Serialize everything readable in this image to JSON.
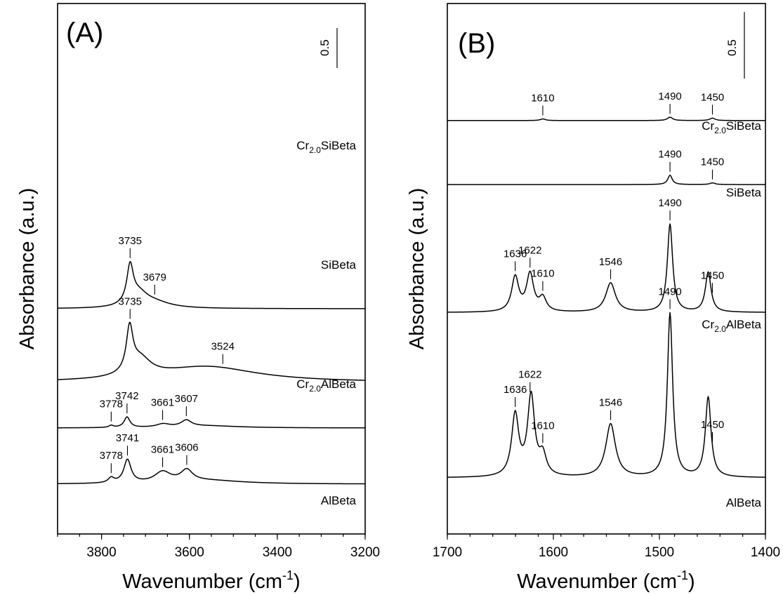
{
  "chart_data": [
    {
      "panel": "(A)",
      "type": "line",
      "xlabel": "Wavenumber (cm",
      "xlabel_sup": "-1",
      "xlabel_close": ")",
      "ylabel": "Absorbance (a.u.)",
      "xlim": [
        3900,
        3200
      ],
      "x_reversed": true,
      "xticks": [
        3800,
        3600,
        3400,
        3200
      ],
      "xtick_labels": [
        "3800",
        "3600",
        "3400",
        "3200"
      ],
      "scale_bar_label": "0.5",
      "series": [
        {
          "name": "Cr",
          "name_sub": "2.0",
          "name_rest": "SiBeta",
          "baseline": 2.6,
          "features": [
            {
              "center": 3735,
              "height": 0.53,
              "width": 9
            },
            {
              "center": 3715,
              "height": 0.18,
              "width": 25
            },
            {
              "center": 3680,
              "height": 0.08,
              "width": 45
            }
          ],
          "peaks": [
            {
              "x": 3735,
              "label": "3735"
            },
            {
              "x": 3679,
              "label": "3679"
            }
          ]
        },
        {
          "name": "SiBeta",
          "baseline": 1.55,
          "features": [
            {
              "center": 3736,
              "height": 0.62,
              "width": 9
            },
            {
              "center": 3712,
              "height": 0.25,
              "width": 30
            },
            {
              "center": 3560,
              "height": 0.22,
              "width": 140
            }
          ],
          "peaks": [
            {
              "x": 3735,
              "label": "3735"
            },
            {
              "x": 3524,
              "label": "3524"
            }
          ]
        },
        {
          "name": "Cr",
          "name_sub": "2.0",
          "name_rest": "AlBeta",
          "baseline": 0.9,
          "features": [
            {
              "center": 3778,
              "height": 0.03,
              "width": 6
            },
            {
              "center": 3742,
              "height": 0.15,
              "width": 8
            },
            {
              "center": 3660,
              "height": 0.045,
              "width": 18
            },
            {
              "center": 3607,
              "height": 0.09,
              "width": 14
            },
            {
              "center": 3560,
              "height": 0.03,
              "width": 90
            }
          ],
          "peaks": [
            {
              "x": 3778,
              "label": "3778"
            },
            {
              "x": 3742,
              "label": "3742"
            },
            {
              "x": 3661,
              "label": "3661"
            },
            {
              "x": 3607,
              "label": "3607"
            }
          ]
        },
        {
          "name": "AlBeta",
          "baseline": 0.1,
          "features": [
            {
              "center": 3778,
              "height": 0.07,
              "width": 8
            },
            {
              "center": 3741,
              "height": 0.33,
              "width": 10
            },
            {
              "center": 3661,
              "height": 0.15,
              "width": 22
            },
            {
              "center": 3606,
              "height": 0.16,
              "width": 16
            },
            {
              "center": 3560,
              "height": 0.05,
              "width": 100
            }
          ],
          "peaks": [
            {
              "x": 3778,
              "label": "3778"
            },
            {
              "x": 3741,
              "label": "3741"
            },
            {
              "x": 3661,
              "label": "3661"
            },
            {
              "x": 3606,
              "label": "3606"
            }
          ]
        }
      ]
    },
    {
      "panel": "(B)",
      "type": "line",
      "xlabel": "Wavenumber (cm",
      "xlabel_sup": "-1",
      "xlabel_close": ")",
      "ylabel": "Absorbance (a.u.)",
      "xlim": [
        1700,
        1400
      ],
      "x_reversed": true,
      "xticks": [
        1700,
        1600,
        1500,
        1400
      ],
      "xtick_labels": [
        "1700",
        "1600",
        "1500",
        "1400"
      ],
      "scale_bar_label": "0.5",
      "series": [
        {
          "name": "Cr",
          "name_sub": "2.0",
          "name_rest": "SiBeta",
          "baseline": 2.78,
          "features": [
            {
              "center": 1610,
              "height": 0.012,
              "width": 3
            },
            {
              "center": 1490,
              "height": 0.025,
              "width": 3
            },
            {
              "center": 1450,
              "height": 0.018,
              "width": 3
            }
          ],
          "peaks": [
            {
              "x": 1610,
              "label": "1610"
            },
            {
              "x": 1490,
              "label": "1490"
            },
            {
              "x": 1450,
              "label": "1450"
            }
          ]
        },
        {
          "name": "SiBeta",
          "baseline": 2.3,
          "features": [
            {
              "center": 1490,
              "height": 0.07,
              "width": 2.5
            },
            {
              "center": 1450,
              "height": 0.012,
              "width": 3
            }
          ],
          "peaks": [
            {
              "x": 1490,
              "label": "1490"
            },
            {
              "x": 1450,
              "label": "1450"
            }
          ]
        },
        {
          "name": "Cr",
          "name_sub": "2.0",
          "name_rest": "AlBeta",
          "baseline": 1.34,
          "features": [
            {
              "center": 1636,
              "height": 0.26,
              "width": 4
            },
            {
              "center": 1622,
              "height": 0.28,
              "width": 4
            },
            {
              "center": 1610,
              "height": 0.1,
              "width": 4
            },
            {
              "center": 1546,
              "height": 0.22,
              "width": 5.5
            },
            {
              "center": 1490,
              "height": 0.66,
              "width": 3
            },
            {
              "center": 1454,
              "height": 0.3,
              "width": 3.2
            }
          ],
          "peaks": [
            {
              "x": 1636,
              "label": "1636"
            },
            {
              "x": 1622,
              "label": "1622"
            },
            {
              "x": 1610,
              "label": "1610"
            },
            {
              "x": 1546,
              "label": "1546"
            },
            {
              "x": 1490,
              "label": "1490"
            },
            {
              "x": 1450,
              "label": "1450"
            }
          ]
        },
        {
          "name": "AlBeta",
          "baseline": 0.1,
          "features": [
            {
              "center": 1636,
              "height": 0.46,
              "width": 4
            },
            {
              "center": 1621,
              "height": 0.6,
              "width": 4
            },
            {
              "center": 1610,
              "height": 0.15,
              "width": 4
            },
            {
              "center": 1546,
              "height": 0.4,
              "width": 5.5
            },
            {
              "center": 1490,
              "height": 1.23,
              "width": 3
            },
            {
              "center": 1454,
              "height": 0.6,
              "width": 3.2
            }
          ],
          "peaks": [
            {
              "x": 1636,
              "label": "1636"
            },
            {
              "x": 1622,
              "label": "1622"
            },
            {
              "x": 1610,
              "label": "1610"
            },
            {
              "x": 1546,
              "label": "1546"
            },
            {
              "x": 1490,
              "label": "1490"
            },
            {
              "x": 1450,
              "label": "1450"
            }
          ]
        }
      ]
    }
  ]
}
